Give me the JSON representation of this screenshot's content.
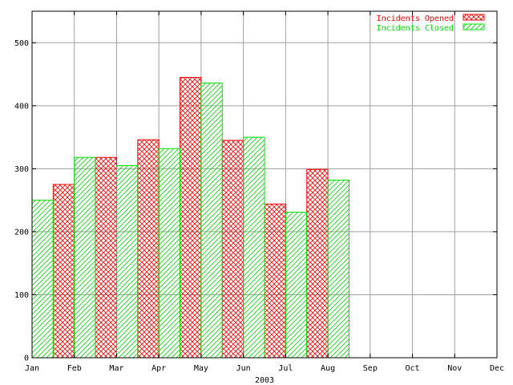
{
  "chart_data": {
    "type": "bar",
    "title": "",
    "xlabel": "2003",
    "ylabel": "",
    "categories": [
      "Jan",
      "Feb",
      "Mar",
      "Apr",
      "May",
      "Jun",
      "Jul",
      "Aug",
      "Sep",
      "Oct",
      "Nov",
      "Dec"
    ],
    "ylim": [
      0,
      550
    ],
    "yticks": [
      0,
      100,
      200,
      300,
      400,
      500
    ],
    "grid": true,
    "legend_position": "top-right",
    "series": [
      {
        "name": "Incidents Opened",
        "color": "#ff0000",
        "pattern": "crosshatch",
        "values": [
          275,
          318,
          346,
          445,
          345,
          244,
          299,
          0,
          0,
          0,
          0,
          0
        ]
      },
      {
        "name": "Incidents Closed",
        "color": "#00e000",
        "pattern": "diagonal",
        "values": [
          250,
          318,
          305,
          332,
          436,
          350,
          231,
          282,
          0,
          0,
          0,
          0
        ]
      }
    ]
  }
}
